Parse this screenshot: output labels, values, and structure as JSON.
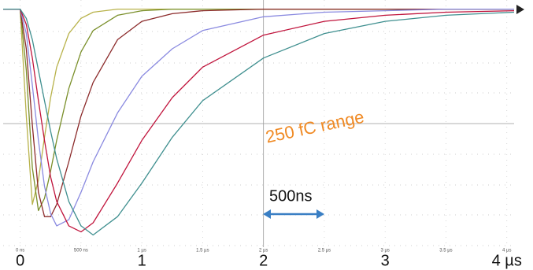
{
  "chart_data": {
    "type": "line",
    "annotations": [
      "250 fC range",
      "500ns"
    ],
    "x": [
      -0.14,
      0,
      0.05,
      0.1,
      0.15,
      0.2,
      0.25,
      0.3,
      0.4,
      0.5,
      0.6,
      0.8,
      1,
      1.25,
      1.5,
      2,
      2.5,
      3,
      3.5,
      4.06
    ],
    "series": [
      {
        "color": "#b8b24a",
        "values": [
          0,
          0,
          -3.5,
          -6.4,
          -5.6,
          -4.2,
          -2.9,
          -1.9,
          -0.8,
          -0.3,
          -0.1,
          0,
          0,
          0,
          0,
          0,
          0,
          0,
          0,
          0
        ]
      },
      {
        "color": "#7a8f2a",
        "values": [
          0,
          0,
          -2.0,
          -5.2,
          -6.6,
          -6.2,
          -5.3,
          -4.3,
          -2.6,
          -1.4,
          -0.7,
          -0.2,
          -0.05,
          0,
          0,
          0,
          0,
          0,
          0,
          0
        ]
      },
      {
        "color": "#8b2a2a",
        "values": [
          0,
          0,
          -1.3,
          -3.8,
          -6.0,
          -6.8,
          -6.8,
          -6.4,
          -5.0,
          -3.5,
          -2.4,
          -1.0,
          -0.4,
          -0.15,
          -0.05,
          0,
          0,
          0,
          0,
          0
        ]
      },
      {
        "color": "#8a8ae0",
        "values": [
          0,
          0,
          -0.8,
          -2.5,
          -4.3,
          -5.8,
          -6.7,
          -7.1,
          -6.9,
          -6.0,
          -5.0,
          -3.4,
          -2.2,
          -1.3,
          -0.7,
          -0.25,
          -0.1,
          -0.05,
          0,
          0
        ]
      },
      {
        "color": "#c0143c",
        "values": [
          0,
          0,
          -0.5,
          -1.6,
          -3.0,
          -4.3,
          -5.5,
          -6.3,
          -7.1,
          -7.3,
          -7.0,
          -5.7,
          -4.3,
          -2.9,
          -1.9,
          -0.85,
          -0.4,
          -0.2,
          -0.1,
          -0.05
        ]
      },
      {
        "color": "#3f8f8f",
        "values": [
          0,
          0,
          -0.3,
          -1.0,
          -2.0,
          -3.0,
          -4.0,
          -4.9,
          -6.3,
          -7.1,
          -7.4,
          -6.8,
          -5.7,
          -4.2,
          -3.0,
          -1.6,
          -0.8,
          -0.4,
          -0.2,
          -0.1
        ]
      }
    ],
    "xlim": [
      -0.14,
      4.06
    ],
    "ylim": [
      -7.8,
      0.3
    ],
    "xticks": [
      {
        "value": 0,
        "label": "0 ns"
      },
      {
        "value": 0.5,
        "label": "500 ns"
      },
      {
        "value": 1,
        "label": "1 µs"
      },
      {
        "value": 1.5,
        "label": "1.5 µs"
      },
      {
        "value": 2,
        "label": "2 µs"
      },
      {
        "value": 2.5,
        "label": "2.5 µs"
      },
      {
        "value": 3,
        "label": "3 µs"
      },
      {
        "value": 3.5,
        "label": "3.5 µs"
      },
      {
        "value": 4,
        "label": "4 µs"
      }
    ],
    "xtick_labels_large": [
      {
        "value": 0,
        "label": "0"
      },
      {
        "value": 1,
        "label": "1"
      },
      {
        "value": 2,
        "label": "2"
      },
      {
        "value": 3,
        "label": "3"
      },
      {
        "value": 4,
        "label": "4 µs"
      }
    ],
    "grid": true
  }
}
